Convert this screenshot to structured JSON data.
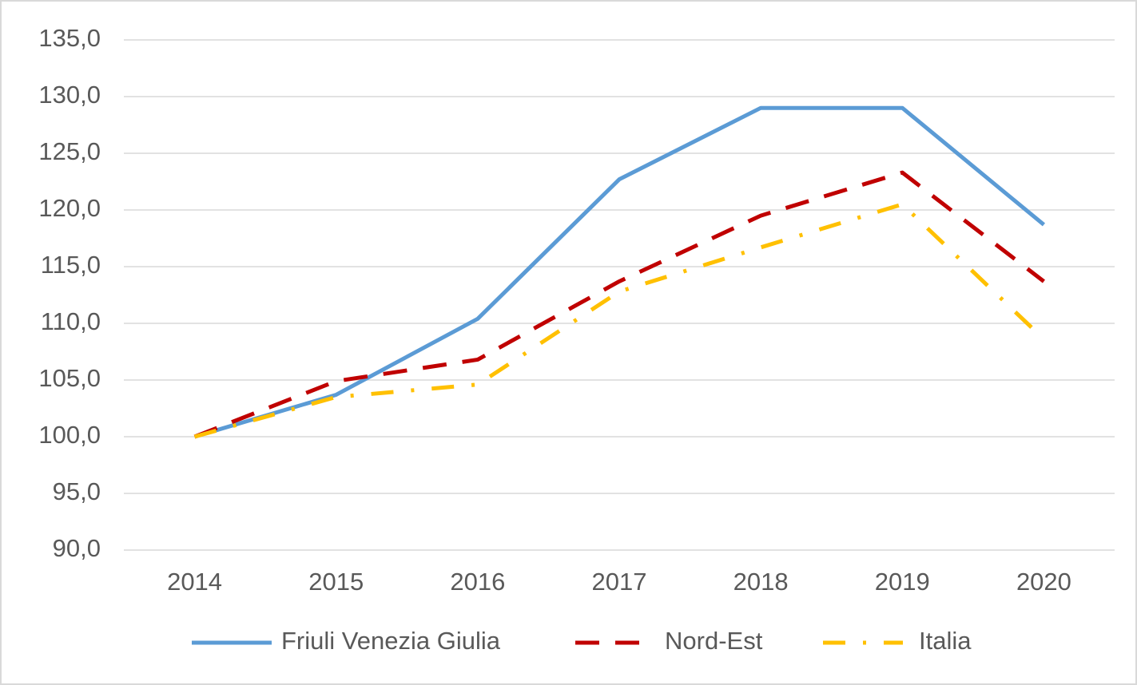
{
  "chart_data": {
    "type": "line",
    "categories": [
      "2014",
      "2015",
      "2016",
      "2017",
      "2018",
      "2019",
      "2020"
    ],
    "series": [
      {
        "name": "Friuli Venezia Giulia",
        "color": "#5b9bd5",
        "dash": "solid",
        "values": [
          100.0,
          103.7,
          110.4,
          122.7,
          129.0,
          129.0,
          118.7
        ]
      },
      {
        "name": "Nord-Est",
        "color": "#c00000",
        "dash": "dashed",
        "values": [
          100.0,
          104.9,
          106.8,
          113.7,
          119.5,
          123.3,
          113.7
        ]
      },
      {
        "name": "Italia",
        "color": "#ffc000",
        "dash": "dashdot",
        "values": [
          100.0,
          103.5,
          104.6,
          112.8,
          116.7,
          120.5,
          108.6
        ]
      }
    ],
    "ylim": [
      90,
      135
    ],
    "yticks": [
      {
        "value": 90,
        "label": "90,0"
      },
      {
        "value": 95,
        "label": "95,0"
      },
      {
        "value": 100,
        "label": "100,0"
      },
      {
        "value": 105,
        "label": "105,0"
      },
      {
        "value": 110,
        "label": "110,0"
      },
      {
        "value": 115,
        "label": "115,0"
      },
      {
        "value": 120,
        "label": "120,0"
      },
      {
        "value": 125,
        "label": "125,0"
      },
      {
        "value": 130,
        "label": "130,0"
      },
      {
        "value": 135,
        "label": "135,0"
      }
    ],
    "grid": true,
    "legend": "bottom"
  }
}
